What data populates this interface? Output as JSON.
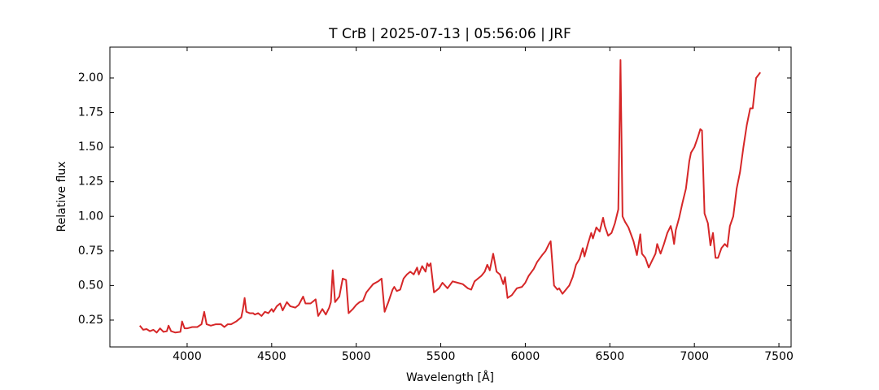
{
  "chart_data": {
    "type": "line",
    "title": "T CrB | 2025-07-13 | 05:56:06 | JRF",
    "xlabel": "Wavelength [Å]",
    "ylabel": "Relative flux",
    "color": "#d62728",
    "xlim": [
      3543,
      7572
    ],
    "ylim": [
      0.056,
      2.223
    ],
    "xticks": [
      4000,
      4500,
      5000,
      5500,
      6000,
      6500,
      7000,
      7500
    ],
    "yticks": [
      0.25,
      {
        "value": 0.5,
        "label": "0.50"
      },
      0.75,
      {
        "value": 1.0,
        "label": "1.00"
      },
      1.25,
      {
        "value": 1.5,
        "label": "1.50"
      },
      1.75,
      {
        "value": 2.0,
        "label": "2.00"
      }
    ],
    "x": [
      3720,
      3740,
      3760,
      3780,
      3800,
      3820,
      3840,
      3860,
      3880,
      3890,
      3905,
      3930,
      3960,
      3970,
      3985,
      4000,
      4030,
      4060,
      4085,
      4101,
      4115,
      4140,
      4170,
      4200,
      4220,
      4240,
      4260,
      4290,
      4320,
      4330,
      4340,
      4350,
      4370,
      4390,
      4400,
      4420,
      4440,
      4460,
      4480,
      4500,
      4510,
      4530,
      4550,
      4565,
      4590,
      4610,
      4640,
      4660,
      4686,
      4700,
      4730,
      4760,
      4775,
      4800,
      4820,
      4840,
      4850,
      4861,
      4875,
      4900,
      4920,
      4940,
      4955,
      4980,
      5000,
      5020,
      5040,
      5060,
      5080,
      5100,
      5130,
      5150,
      5168,
      5190,
      5215,
      5225,
      5240,
      5260,
      5280,
      5300,
      5320,
      5340,
      5360,
      5370,
      5390,
      5410,
      5420,
      5430,
      5440,
      5460,
      5490,
      5510,
      5540,
      5570,
      5600,
      5630,
      5660,
      5680,
      5700,
      5720,
      5740,
      5760,
      5775,
      5790,
      5810,
      5830,
      5850,
      5870,
      5880,
      5895,
      5920,
      5950,
      5980,
      6000,
      6020,
      6050,
      6070,
      6100,
      6120,
      6140,
      6150,
      6170,
      6190,
      6200,
      6220,
      6240,
      6260,
      6280,
      6300,
      6320,
      6340,
      6350,
      6370,
      6390,
      6400,
      6420,
      6440,
      6460,
      6470,
      6490,
      6510,
      6530,
      6550,
      6563,
      6575,
      6590,
      6610,
      6640,
      6660,
      6680,
      6690,
      6710,
      6730,
      6750,
      6770,
      6780,
      6800,
      6820,
      6840,
      6860,
      6870,
      6880,
      6890,
      6910,
      6930,
      6950,
      6970,
      6980,
      7000,
      7020,
      7035,
      7045,
      7060,
      7080,
      7095,
      7110,
      7125,
      7140,
      7160,
      7180,
      7195,
      7210,
      7230,
      7250,
      7270,
      7290,
      7310,
      7330,
      7345,
      7365,
      7390
    ],
    "values": [
      0.21,
      0.18,
      0.185,
      0.17,
      0.18,
      0.16,
      0.19,
      0.165,
      0.17,
      0.21,
      0.17,
      0.16,
      0.165,
      0.24,
      0.19,
      0.19,
      0.2,
      0.2,
      0.22,
      0.31,
      0.22,
      0.21,
      0.22,
      0.22,
      0.2,
      0.22,
      0.22,
      0.24,
      0.27,
      0.33,
      0.41,
      0.31,
      0.3,
      0.3,
      0.29,
      0.3,
      0.28,
      0.31,
      0.3,
      0.33,
      0.31,
      0.35,
      0.37,
      0.32,
      0.38,
      0.35,
      0.34,
      0.36,
      0.42,
      0.37,
      0.37,
      0.4,
      0.28,
      0.33,
      0.29,
      0.34,
      0.38,
      0.61,
      0.38,
      0.42,
      0.55,
      0.54,
      0.3,
      0.33,
      0.36,
      0.38,
      0.39,
      0.45,
      0.48,
      0.51,
      0.53,
      0.55,
      0.31,
      0.38,
      0.47,
      0.49,
      0.46,
      0.47,
      0.55,
      0.58,
      0.6,
      0.58,
      0.63,
      0.58,
      0.64,
      0.6,
      0.66,
      0.64,
      0.66,
      0.45,
      0.48,
      0.52,
      0.48,
      0.53,
      0.52,
      0.51,
      0.48,
      0.47,
      0.53,
      0.55,
      0.57,
      0.6,
      0.65,
      0.61,
      0.73,
      0.6,
      0.58,
      0.51,
      0.56,
      0.41,
      0.43,
      0.48,
      0.49,
      0.52,
      0.57,
      0.62,
      0.67,
      0.72,
      0.75,
      0.8,
      0.82,
      0.5,
      0.47,
      0.48,
      0.44,
      0.47,
      0.5,
      0.56,
      0.65,
      0.69,
      0.77,
      0.71,
      0.8,
      0.88,
      0.84,
      0.92,
      0.89,
      0.99,
      0.93,
      0.86,
      0.88,
      0.95,
      1.05,
      2.13,
      1.0,
      0.96,
      0.92,
      0.82,
      0.72,
      0.87,
      0.73,
      0.7,
      0.63,
      0.68,
      0.73,
      0.8,
      0.73,
      0.8,
      0.88,
      0.93,
      0.88,
      0.8,
      0.9,
      0.99,
      1.1,
      1.2,
      1.4,
      1.46,
      1.5,
      1.57,
      1.63,
      1.62,
      1.02,
      0.95,
      0.79,
      0.88,
      0.7,
      0.7,
      0.77,
      0.8,
      0.78,
      0.93,
      1.0,
      1.2,
      1.32,
      1.5,
      1.66,
      1.78,
      1.78,
      2.0,
      2.04
    ]
  }
}
